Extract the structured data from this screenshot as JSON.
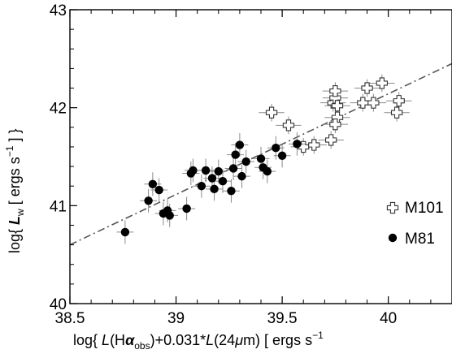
{
  "chart_data": {
    "type": "scatter",
    "xlabel": "log{ L(Hα_obs)+0.031*L(24μm) [ ergs s^-1 ] }",
    "ylabel": "log{ L_w [ ergs s^-1 ] }",
    "xlabel_parts": {
      "pre": "log{ ",
      "L1": "L",
      "paren1": "(H",
      "alpha": "α",
      "sub": "obs",
      "mid": ")+0.031*",
      "L2": "L",
      "paren2": "(24",
      "mu": "μ",
      "post": "m)  [ ergs s",
      "sup": "−1"
    },
    "ylabel_parts": {
      "pre": "log{ ",
      "L": "L",
      "sub": "w",
      "mid": "  [ ergs s",
      "sup": "−1",
      "post": " ] }"
    },
    "xlim": [
      38.5,
      40.3
    ],
    "ylim": [
      40.0,
      43.0
    ],
    "xticks": [
      "38.5",
      "39",
      "39.5",
      "40"
    ],
    "yticks": [
      "40",
      "41",
      "42",
      "43"
    ],
    "grid": false,
    "legend_position": "right",
    "fit_line": {
      "style": "dash-dot",
      "color": "#555555",
      "x": [
        38.5,
        40.3
      ],
      "y": [
        40.6,
        42.45
      ]
    },
    "series": [
      {
        "name": "M101",
        "marker": "open-cross",
        "points": [
          [
            39.45,
            41.95
          ],
          [
            39.53,
            41.82
          ],
          [
            39.6,
            41.6
          ],
          [
            39.65,
            41.62
          ],
          [
            39.73,
            41.67
          ],
          [
            39.74,
            42.05
          ],
          [
            39.75,
            42.1
          ],
          [
            39.75,
            42.17
          ],
          [
            39.76,
            42.02
          ],
          [
            39.76,
            41.9
          ],
          [
            39.75,
            41.83
          ],
          [
            39.88,
            42.05
          ],
          [
            39.9,
            42.2
          ],
          [
            39.93,
            42.05
          ],
          [
            39.97,
            42.25
          ],
          [
            40.04,
            41.95
          ],
          [
            40.05,
            42.07
          ]
        ]
      },
      {
        "name": "M81",
        "marker": "filled-circle",
        "points": [
          [
            38.76,
            40.73
          ],
          [
            38.87,
            41.05
          ],
          [
            38.89,
            41.22
          ],
          [
            38.92,
            41.16
          ],
          [
            38.94,
            40.92
          ],
          [
            38.96,
            40.95
          ],
          [
            38.97,
            40.9
          ],
          [
            39.05,
            40.97
          ],
          [
            39.07,
            41.33
          ],
          [
            39.08,
            41.36
          ],
          [
            39.12,
            41.2
          ],
          [
            39.14,
            41.36
          ],
          [
            39.17,
            41.28
          ],
          [
            39.18,
            41.17
          ],
          [
            39.2,
            41.35
          ],
          [
            39.22,
            41.25
          ],
          [
            39.26,
            41.15
          ],
          [
            39.27,
            41.38
          ],
          [
            39.28,
            41.52
          ],
          [
            39.3,
            41.62
          ],
          [
            39.31,
            41.3
          ],
          [
            39.33,
            41.45
          ],
          [
            39.4,
            41.48
          ],
          [
            39.41,
            41.39
          ],
          [
            39.43,
            41.35
          ],
          [
            39.47,
            41.59
          ],
          [
            39.5,
            41.51
          ],
          [
            39.57,
            41.63
          ]
        ]
      }
    ]
  },
  "legend": {
    "items": [
      {
        "label": "M101"
      },
      {
        "label": "M81"
      }
    ]
  }
}
